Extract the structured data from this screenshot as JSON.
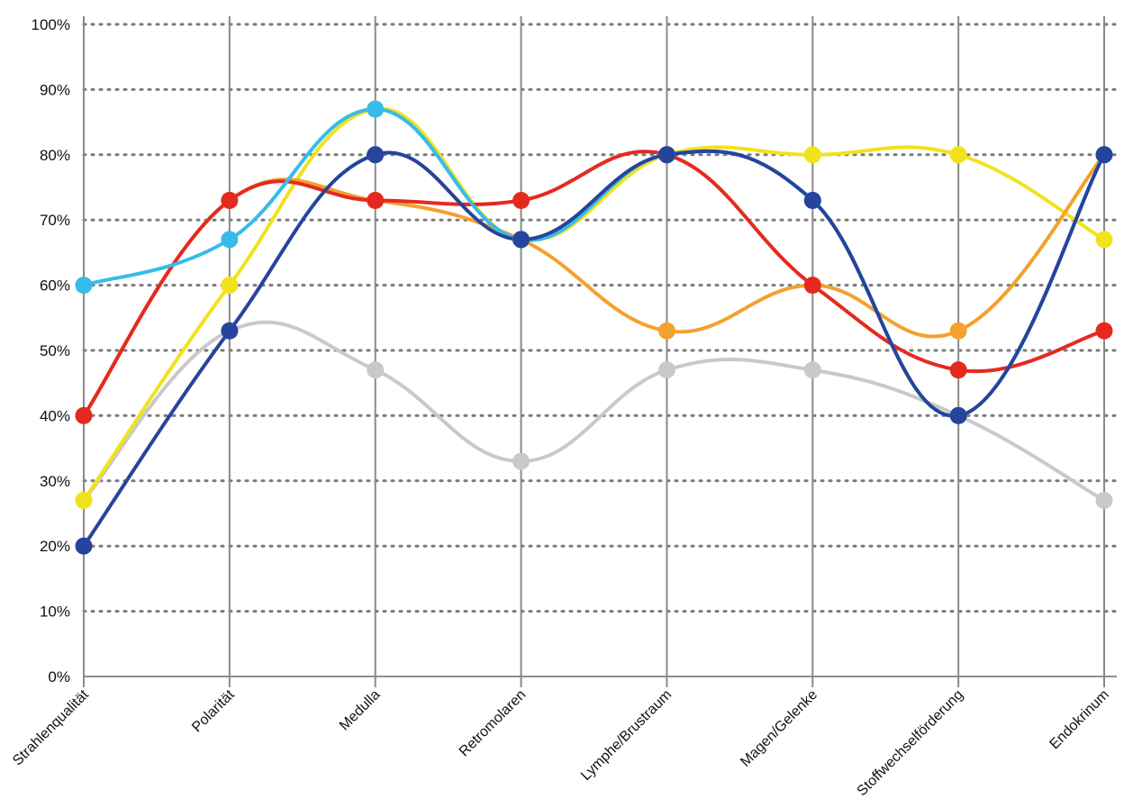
{
  "chart_data": {
    "type": "line",
    "title": "",
    "xlabel": "",
    "ylabel": "",
    "categories": [
      "Strahlenqualität",
      "Polarität",
      "Medulla",
      "Retromolaren",
      "Lymphe/Brustraum",
      "Magen/Gelenke",
      "Stoffwechselförderung",
      "Endokrinum"
    ],
    "y_ticks": [
      "0%",
      "10%",
      "20%",
      "30%",
      "40%",
      "50%",
      "60%",
      "70%",
      "80%",
      "90%",
      "100%"
    ],
    "ylim": [
      0,
      100
    ],
    "grid": "horizontal dotted, vertical solid",
    "smooth": true,
    "series": [
      {
        "color": "#c9c9c9",
        "values": [
          27,
          53,
          47,
          33,
          47,
          47,
          40,
          27
        ]
      },
      {
        "color": "#f2e21c",
        "values": [
          27,
          60,
          87,
          67,
          80,
          80,
          80,
          67
        ]
      },
      {
        "color": "#f3a12e",
        "values": [
          40,
          73,
          73,
          67,
          53,
          60,
          53,
          80
        ]
      },
      {
        "color": "#e42a1f",
        "values": [
          40,
          73,
          73,
          73,
          80,
          60,
          47,
          53
        ]
      },
      {
        "color": "#36bce9",
        "values": [
          60,
          67,
          87,
          67,
          80,
          73,
          40,
          80
        ]
      },
      {
        "color": "#26449b",
        "values": [
          20,
          53,
          80,
          67,
          80,
          73,
          40,
          80
        ]
      }
    ]
  }
}
